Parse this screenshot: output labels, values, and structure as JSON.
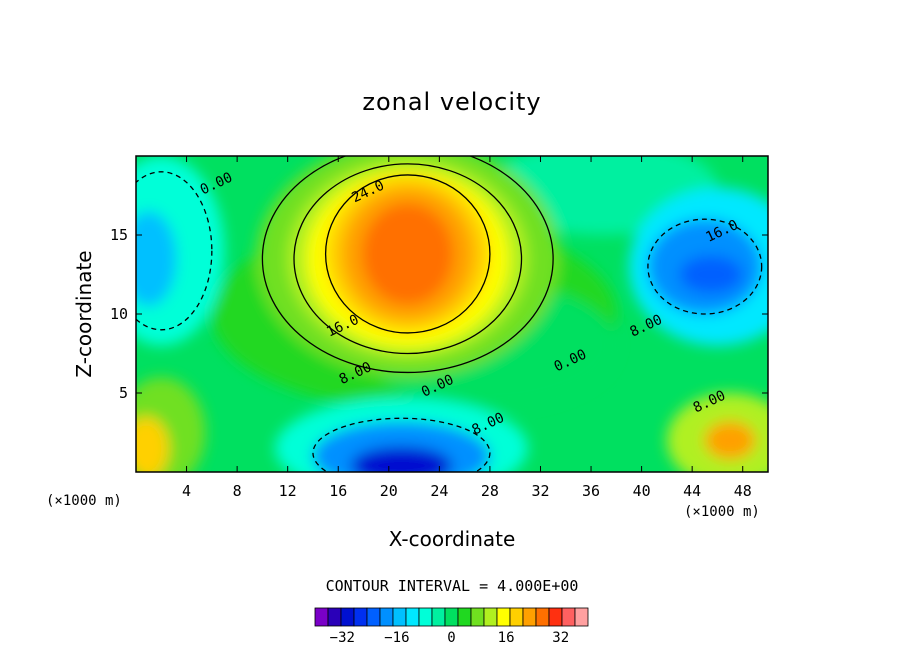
{
  "chart_data": {
    "type": "heatmap",
    "title": "zonal velocity",
    "xlabel": "X-coordinate",
    "ylabel": "Z-coordinate",
    "x_unit_left": "(×1000 m)",
    "x_unit_right": "(×1000 m)",
    "xlim": [
      0,
      50
    ],
    "ylim": [
      0,
      20
    ],
    "x_ticks": [
      4,
      8,
      12,
      16,
      20,
      24,
      28,
      32,
      36,
      40,
      44,
      48
    ],
    "y_ticks": [
      5,
      10,
      15
    ],
    "contour_interval_text": "CONTOUR INTERVAL = 4.000E+00",
    "contour_labels": [
      {
        "text": "24.0",
        "x": 18.5,
        "y": 17.5
      },
      {
        "text": "16.0",
        "x": 16.5,
        "y": 9.0
      },
      {
        "text": "8.00",
        "x": 17.5,
        "y": 6.0
      },
      {
        "text": "0.00",
        "x": 6.5,
        "y": 18.0
      },
      {
        "text": "0.00",
        "x": 24.0,
        "y": 5.2
      },
      {
        "text": "0.00",
        "x": 34.5,
        "y": 6.8
      },
      {
        "text": "8.00",
        "x": 28.0,
        "y": 2.8
      },
      {
        "text": "8.00",
        "x": 40.5,
        "y": 9.0
      },
      {
        "text": "8.00",
        "x": 45.5,
        "y": 4.2
      },
      {
        "text": "16.0",
        "x": 46.5,
        "y": 15.0
      }
    ],
    "colorbar": {
      "levels": [
        -40,
        -36,
        -32,
        -28,
        -24,
        -20,
        -16,
        -12,
        -8,
        -4,
        0,
        4,
        8,
        12,
        16,
        20,
        24,
        28,
        32,
        36,
        40
      ],
      "colors": [
        "#7a00c8",
        "#2a00b8",
        "#0010d0",
        "#0030f0",
        "#0060ff",
        "#0090ff",
        "#00c0ff",
        "#00e8ff",
        "#00ffd8",
        "#00f0a0",
        "#00e060",
        "#20d820",
        "#70e020",
        "#b0f020",
        "#ffff00",
        "#ffd000",
        "#ffa000",
        "#ff7000",
        "#ff3010",
        "#ff6060",
        "#ffa0a0"
      ],
      "tick_values": [
        -32,
        -16,
        0,
        16,
        32
      ],
      "tick_labels": [
        "−32",
        "−16",
        "0",
        "16",
        "32"
      ]
    },
    "features": [
      {
        "name": "positive jet core",
        "x": 21.5,
        "z": 13.5,
        "value": 30
      },
      {
        "name": "negative core bottom",
        "x": 21.0,
        "z": 0.3,
        "value": -36
      },
      {
        "name": "negative lobe upper right",
        "x": 45.0,
        "z": 13.0,
        "value": -24
      },
      {
        "name": "negative lobe upper left",
        "x": 1.0,
        "z": 13.5,
        "value": -14
      },
      {
        "name": "positive lobe bottom right",
        "x": 47.0,
        "z": 2.0,
        "value": 24
      },
      {
        "name": "positive lobe bottom left",
        "x": 0.5,
        "z": 1.5,
        "value": 22
      }
    ]
  }
}
